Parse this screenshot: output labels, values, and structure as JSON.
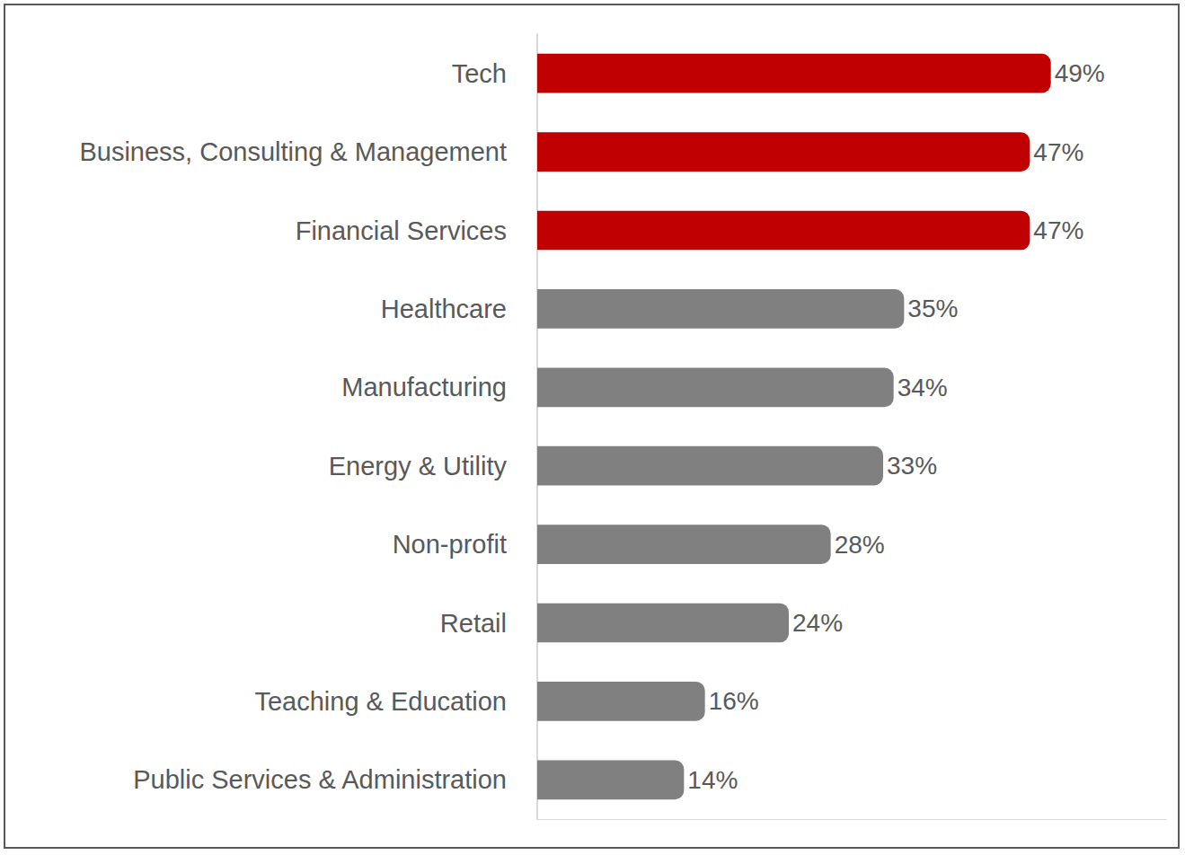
{
  "chart_data": {
    "type": "bar",
    "orientation": "horizontal",
    "categories": [
      "Tech",
      "Business, Consulting & Management",
      "Financial Services",
      "Healthcare",
      "Manufacturing",
      "Energy & Utility",
      "Non-profit",
      "Retail",
      "Teaching & Education",
      "Public Services & Administration"
    ],
    "values": [
      49,
      47,
      47,
      35,
      34,
      33,
      28,
      24,
      16,
      14
    ],
    "value_labels": [
      "49%",
      "47%",
      "47%",
      "35%",
      "34%",
      "33%",
      "28%",
      "24%",
      "16%",
      "14%"
    ],
    "colors": [
      "#c00000",
      "#c00000",
      "#c00000",
      "#808080",
      "#808080",
      "#808080",
      "#808080",
      "#808080",
      "#808080",
      "#808080"
    ],
    "xlim": [
      0,
      60
    ],
    "data_labels": true,
    "tick_labels": "y",
    "grid": false
  }
}
